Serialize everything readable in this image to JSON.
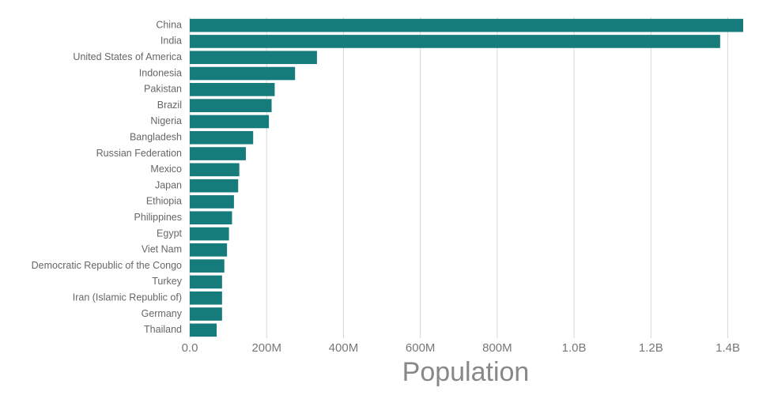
{
  "chart_data": {
    "type": "bar",
    "orientation": "horizontal",
    "categories": [
      "China",
      "India",
      "United States of America",
      "Indonesia",
      "Pakistan",
      "Brazil",
      "Nigeria",
      "Bangladesh",
      "Russian Federation",
      "Mexico",
      "Japan",
      "Ethiopia",
      "Philippines",
      "Egypt",
      "Viet Nam",
      "Democratic Republic of the Congo",
      "Turkey",
      "Iran (Islamic Republic of)",
      "Germany",
      "Thailand"
    ],
    "values": [
      1440000000,
      1380000000,
      331000000,
      274000000,
      221000000,
      213000000,
      206000000,
      165000000,
      146000000,
      129000000,
      126000000,
      115000000,
      110000000,
      102000000,
      97000000,
      90000000,
      84000000,
      84000000,
      84000000,
      70000000
    ],
    "xlabel": "Population",
    "ylabel": "",
    "xlim": [
      0,
      1440000000
    ],
    "x_ticks": [
      0,
      200000000,
      400000000,
      600000000,
      800000000,
      1000000000,
      1200000000,
      1400000000
    ],
    "x_tick_labels": [
      "0.0",
      "200M",
      "400M",
      "600M",
      "800M",
      "1.0B",
      "1.2B",
      "1.4B"
    ],
    "grid": "vertical",
    "bar_color": "#167b7b"
  }
}
